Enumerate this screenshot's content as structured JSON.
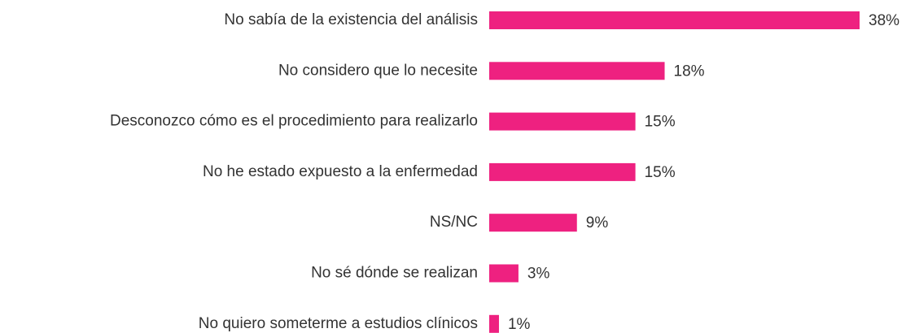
{
  "chart_data": {
    "type": "barh",
    "categories": [
      "No sabía de la existencia del análisis",
      "No considero que lo necesite",
      "Desconozco cómo es el procedimiento para realizarlo",
      "No he estado expuesto a la enfermedad",
      "NS/NC",
      "No sé dónde se realizan",
      "No quiero someterme a estudios clínicos"
    ],
    "values": [
      38,
      18,
      15,
      15,
      9,
      3,
      1
    ],
    "value_labels": [
      "38%",
      "18%",
      "15%",
      "15%",
      "9%",
      "3%",
      "1%"
    ],
    "color": "#ee2180"
  }
}
